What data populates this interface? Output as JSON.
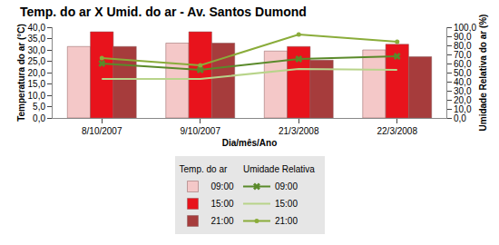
{
  "chart_data": {
    "type": "bar",
    "title": "Temp. do ar X Umid. do ar - Av. Santos Dumond",
    "x_label": "Dia/mês/Ano",
    "y_label": "Temperatura do ar (°C)",
    "y2_label": "Umidade Relativa do ar (%)",
    "categories": [
      "8/10/2007",
      "9/10/2007",
      "21/3/2008",
      "22/3/2008"
    ],
    "ylim": [
      0,
      40
    ],
    "yticks": [
      {
        "value": 0,
        "label": "0,0"
      },
      {
        "value": 5,
        "label": "5,0"
      },
      {
        "value": 10,
        "label": "10,0"
      },
      {
        "value": 15,
        "label": "15,0"
      },
      {
        "value": 20,
        "label": "20,0"
      },
      {
        "value": 25,
        "label": "25,0"
      },
      {
        "value": 30,
        "label": "30,0"
      },
      {
        "value": 35,
        "label": "35,0"
      },
      {
        "value": 40,
        "label": "40,0"
      }
    ],
    "y2lim": [
      0,
      100
    ],
    "y2ticks": [
      {
        "value": 0,
        "label": "0,0"
      },
      {
        "value": 10,
        "label": "10,0"
      },
      {
        "value": 20,
        "label": "20,0"
      },
      {
        "value": 30,
        "label": "30,0"
      },
      {
        "value": 40,
        "label": "40,0"
      },
      {
        "value": 50,
        "label": "50,0"
      },
      {
        "value": 60,
        "label": "60,0"
      },
      {
        "value": 70,
        "label": "70,0"
      },
      {
        "value": 80,
        "label": "80,0"
      },
      {
        "value": 90,
        "label": "90,0"
      },
      {
        "value": 100,
        "label": "100,0"
      }
    ],
    "grid": false,
    "legend": "bottom",
    "series": [
      {
        "name": "09:00",
        "group": "Temp. do ar",
        "type": "bar",
        "color": "#f4c8c8",
        "values": [
          31.5,
          33,
          29.5,
          30
        ]
      },
      {
        "name": "15:00",
        "group": "Temp. do ar",
        "type": "bar",
        "color": "#e8131c",
        "values": [
          38,
          38,
          31.5,
          32.5
        ]
      },
      {
        "name": "21:00",
        "group": "Temp. do ar",
        "type": "bar",
        "color": "#a63c3c",
        "values": [
          31.5,
          33,
          25.5,
          27
        ]
      },
      {
        "name": "09:00",
        "group": "Umidade Relativa",
        "type": "line",
        "axis": "y2",
        "color": "#5a8a2a",
        "marker": "x",
        "values": [
          60,
          53,
          65,
          68
        ]
      },
      {
        "name": "15:00",
        "group": "Umidade Relativa",
        "type": "line",
        "axis": "y2",
        "color": "#b8d48a",
        "marker": "none",
        "values": [
          43,
          43,
          54,
          53
        ]
      },
      {
        "name": "21:00",
        "group": "Umidade Relativa",
        "type": "line",
        "axis": "y2",
        "color": "#8aac3a",
        "marker": "circle",
        "values": [
          66,
          58,
          92,
          84
        ]
      }
    ]
  }
}
